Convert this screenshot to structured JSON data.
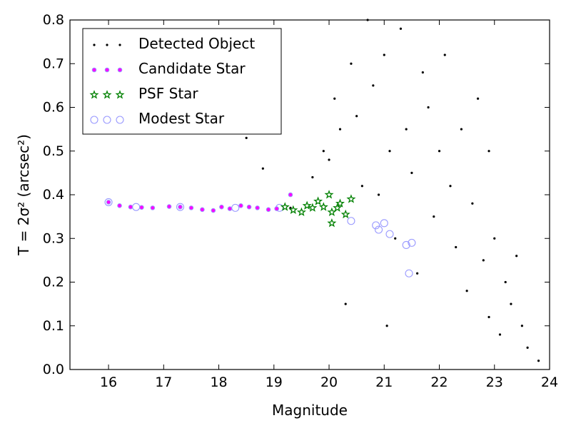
{
  "chart_data": {
    "type": "scatter",
    "xlabel": "Magnitude",
    "ylabel": "T = 2σ² (arcsec²)",
    "xlim": [
      15.3,
      24
    ],
    "ylim": [
      0.0,
      0.8
    ],
    "xticks": [
      "16",
      "17",
      "18",
      "19",
      "20",
      "21",
      "22",
      "23",
      "24"
    ],
    "yticks": [
      "0.0",
      "0.1",
      "0.2",
      "0.3",
      "0.4",
      "0.5",
      "0.6",
      "0.7",
      "0.8"
    ],
    "grid": false,
    "legend_position": "top-left",
    "colors": {
      "detected": "#000000",
      "candidate": "#ff00ff",
      "psf": "#008000",
      "modest": "#9999ff"
    },
    "series": [
      {
        "name": "Detected Object",
        "marker": "dot",
        "values": [
          [
            18.8,
            0.46
          ],
          [
            18.5,
            0.53
          ],
          [
            19.3,
            0.37
          ],
          [
            19.7,
            0.44
          ],
          [
            19.9,
            0.5
          ],
          [
            20.0,
            0.48
          ],
          [
            20.1,
            0.62
          ],
          [
            20.2,
            0.55
          ],
          [
            20.3,
            0.15
          ],
          [
            20.4,
            0.7
          ],
          [
            20.5,
            0.58
          ],
          [
            20.6,
            0.42
          ],
          [
            20.7,
            0.8
          ],
          [
            20.8,
            0.65
          ],
          [
            20.9,
            0.4
          ],
          [
            21.0,
            0.72
          ],
          [
            21.1,
            0.5
          ],
          [
            21.2,
            0.3
          ],
          [
            21.3,
            0.78
          ],
          [
            21.4,
            0.55
          ],
          [
            21.5,
            0.45
          ],
          [
            21.6,
            0.22
          ],
          [
            21.7,
            0.68
          ],
          [
            21.8,
            0.6
          ],
          [
            21.9,
            0.35
          ],
          [
            22.0,
            0.5
          ],
          [
            22.1,
            0.72
          ],
          [
            22.2,
            0.42
          ],
          [
            22.3,
            0.28
          ],
          [
            22.4,
            0.55
          ],
          [
            22.5,
            0.18
          ],
          [
            22.6,
            0.38
          ],
          [
            22.7,
            0.62
          ],
          [
            22.8,
            0.25
          ],
          [
            22.9,
            0.12
          ],
          [
            23.0,
            0.3
          ],
          [
            23.1,
            0.08
          ],
          [
            23.2,
            0.2
          ],
          [
            23.3,
            0.15
          ],
          [
            23.4,
            0.26
          ],
          [
            23.5,
            0.1
          ],
          [
            23.6,
            0.05
          ],
          [
            23.8,
            0.02
          ],
          [
            21.05,
            0.1
          ],
          [
            22.9,
            0.5
          ]
        ]
      },
      {
        "name": "Candidate Star",
        "marker": "circle",
        "values": [
          [
            16.0,
            0.383
          ],
          [
            16.2,
            0.375
          ],
          [
            16.4,
            0.372
          ],
          [
            16.6,
            0.371
          ],
          [
            16.8,
            0.37
          ],
          [
            17.1,
            0.373
          ],
          [
            17.3,
            0.372
          ],
          [
            17.5,
            0.37
          ],
          [
            17.7,
            0.366
          ],
          [
            17.9,
            0.364
          ],
          [
            18.05,
            0.372
          ],
          [
            18.2,
            0.368
          ],
          [
            18.4,
            0.375
          ],
          [
            18.55,
            0.372
          ],
          [
            18.7,
            0.37
          ],
          [
            18.9,
            0.366
          ],
          [
            19.05,
            0.368
          ],
          [
            19.3,
            0.4
          ]
        ]
      },
      {
        "name": "PSF Star",
        "marker": "star",
        "values": [
          [
            19.2,
            0.372
          ],
          [
            19.35,
            0.365
          ],
          [
            19.5,
            0.36
          ],
          [
            19.6,
            0.375
          ],
          [
            19.7,
            0.37
          ],
          [
            19.8,
            0.385
          ],
          [
            19.9,
            0.372
          ],
          [
            20.0,
            0.4
          ],
          [
            20.05,
            0.36
          ],
          [
            20.15,
            0.37
          ],
          [
            20.2,
            0.38
          ],
          [
            20.3,
            0.355
          ],
          [
            20.4,
            0.39
          ],
          [
            20.05,
            0.335
          ]
        ]
      },
      {
        "name": "Modest Star",
        "marker": "open-circle",
        "values": [
          [
            16.0,
            0.383
          ],
          [
            16.5,
            0.372
          ],
          [
            17.3,
            0.372
          ],
          [
            18.3,
            0.37
          ],
          [
            19.1,
            0.37
          ],
          [
            20.4,
            0.34
          ],
          [
            20.85,
            0.33
          ],
          [
            20.9,
            0.32
          ],
          [
            21.0,
            0.335
          ],
          [
            21.1,
            0.31
          ],
          [
            21.4,
            0.285
          ],
          [
            21.5,
            0.29
          ],
          [
            21.45,
            0.22
          ]
        ]
      }
    ]
  }
}
